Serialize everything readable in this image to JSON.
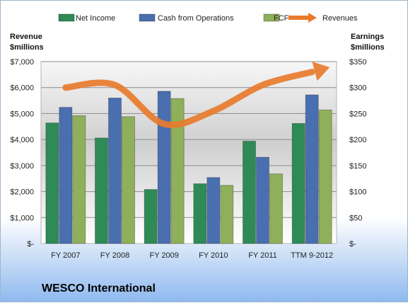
{
  "chart_data": {
    "type": "bar",
    "title": "",
    "company": "WESCO International",
    "categories": [
      "FY 2007",
      "FY 2008",
      "FY 2009",
      "FY 2010",
      "FY 2011",
      "TTM 9-2012"
    ],
    "series": [
      {
        "name": "Net Income",
        "axis": "right",
        "color": "#2e8b57",
        "values": [
          232,
          203,
          104,
          115,
          197,
          231
        ]
      },
      {
        "name": "Cash from Operations",
        "axis": "right",
        "color": "#4a6fb0",
        "values": [
          262,
          280,
          293,
          127,
          166,
          286
        ]
      },
      {
        "name": "FCF",
        "axis": "right",
        "color": "#8fb05a",
        "values": [
          246,
          244,
          279,
          112,
          134,
          257
        ]
      }
    ],
    "line_series": {
      "name": "Revenues",
      "axis": "left",
      "color": "#e87b2c",
      "values": [
        6000,
        6100,
        4600,
        5100,
        6100,
        6600
      ]
    },
    "left_axis": {
      "label_line1": "Revenue",
      "label_line2": "$millions",
      "ylim": [
        0,
        7000
      ],
      "ticks": [
        "$-",
        "$1,000",
        "$2,000",
        "$3,000",
        "$4,000",
        "$5,000",
        "$6,000",
        "$7,000"
      ]
    },
    "right_axis": {
      "label_line1": "Earnings",
      "label_line2": "$millions",
      "ylim": [
        0,
        350
      ],
      "ticks": [
        "$-",
        "$50",
        "$100",
        "$150",
        "$200",
        "$250",
        "$300",
        "$350"
      ]
    },
    "grid": true,
    "legend": "top"
  }
}
